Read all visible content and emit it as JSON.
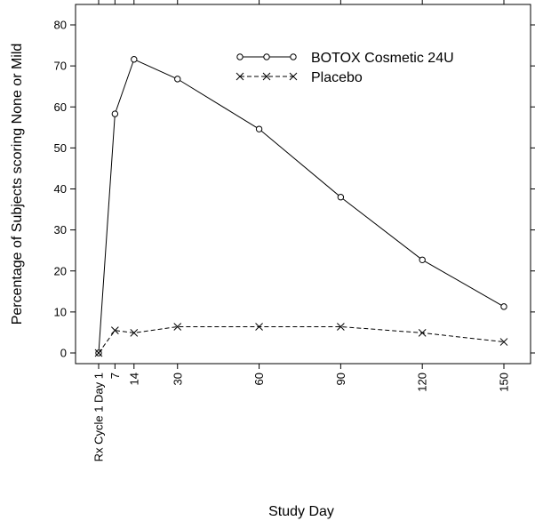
{
  "chart_data": {
    "type": "line",
    "title": "",
    "xlabel": "Study Day",
    "ylabel": "Percentage of Subjects scoring None or Mild",
    "xlim": [
      1,
      150
    ],
    "ylim": [
      0,
      80
    ],
    "x_ticks": [
      {
        "value": 1,
        "label": "Rx Cycle 1 Day 1"
      },
      {
        "value": 7,
        "label": "7"
      },
      {
        "value": 14,
        "label": "14"
      },
      {
        "value": 30,
        "label": "30"
      },
      {
        "value": 60,
        "label": "60"
      },
      {
        "value": 90,
        "label": "90"
      },
      {
        "value": 120,
        "label": "120"
      },
      {
        "value": 150,
        "label": "150"
      }
    ],
    "y_ticks": [
      0,
      10,
      20,
      30,
      40,
      50,
      60,
      70,
      80
    ],
    "grid": false,
    "legend_position": "top-right",
    "series": [
      {
        "name": "BOTOX Cosmetic 24U",
        "marker": "circle",
        "line_style": "solid",
        "x": [
          1,
          7,
          14,
          30,
          60,
          90,
          120,
          150
        ],
        "values": [
          0,
          58.3,
          71.6,
          66.8,
          54.6,
          38.0,
          22.7,
          11.3
        ]
      },
      {
        "name": "Placebo",
        "marker": "x",
        "line_style": "dashed",
        "x": [
          1,
          7,
          14,
          30,
          60,
          90,
          120,
          150
        ],
        "values": [
          0,
          5.5,
          4.9,
          6.4,
          6.4,
          6.4,
          4.9,
          2.7
        ]
      }
    ]
  }
}
